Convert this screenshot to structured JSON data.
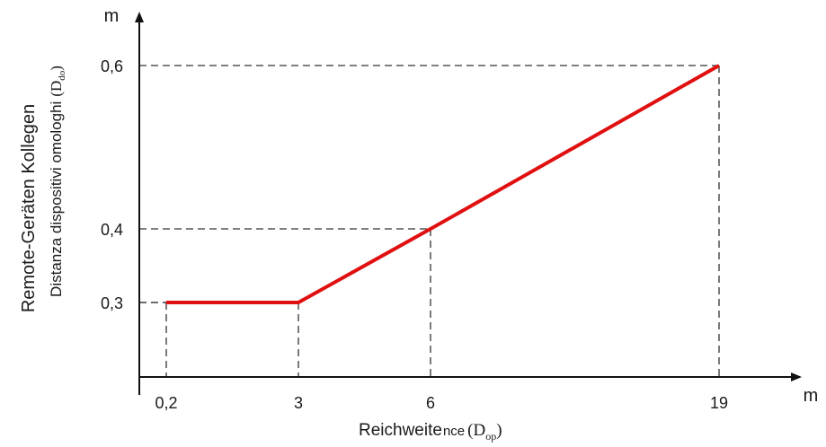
{
  "chart_data": {
    "type": "line",
    "x_unit": "m",
    "y_unit": "m",
    "xticks": [
      "0,2",
      "3",
      "6",
      "19"
    ],
    "yticks": [
      "0,3",
      "0,4",
      "0,6"
    ],
    "points": [
      {
        "x": "0,2",
        "y": "0,3"
      },
      {
        "x": "3",
        "y": "0,3"
      },
      {
        "x": "6",
        "y": "0,4"
      },
      {
        "x": "19",
        "y": "0,6"
      }
    ],
    "xlabel": "Reichweite",
    "xlabel_tail": "nce",
    "xlabel_symbol": "D",
    "xlabel_subscript": "op",
    "ylabel": "Remote-Geräten Kollegen",
    "ylabel2": "Distanza dispositivi omologhi",
    "ylabel2_symbol": "D",
    "ylabel2_subscript": "do",
    "line_color": "#e01010",
    "grid": false
  }
}
